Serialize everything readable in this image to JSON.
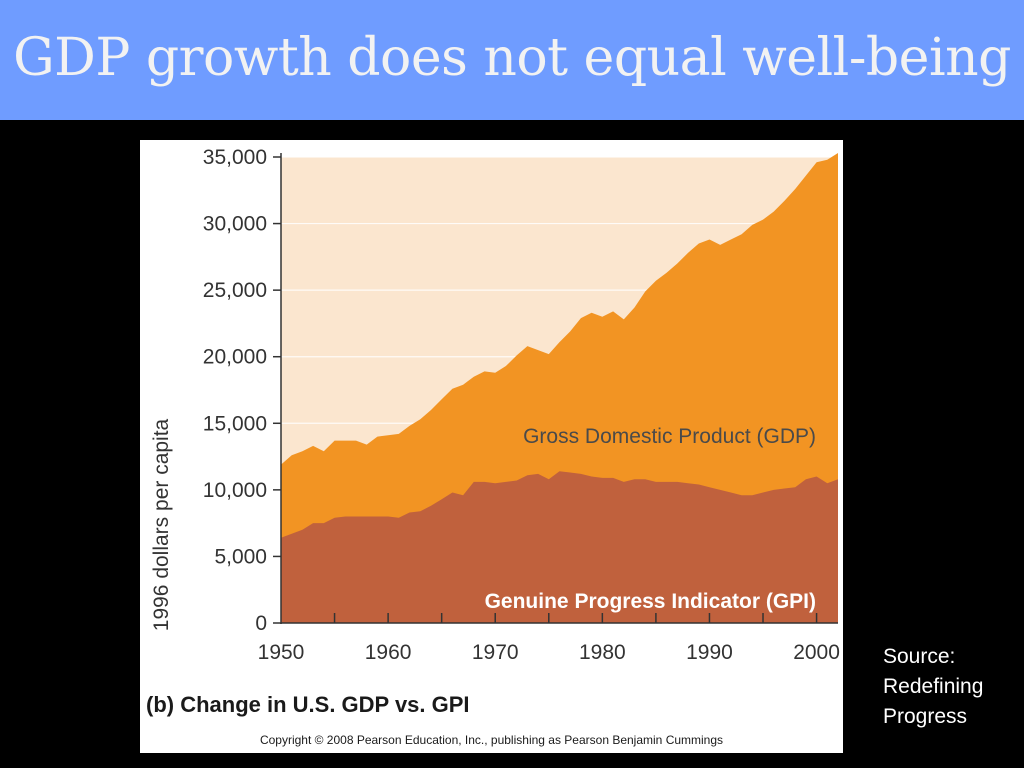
{
  "slide": {
    "title": "GDP growth does not equal well-being",
    "source_lines": [
      "Source:",
      "Redefining",
      "Progress"
    ]
  },
  "figure": {
    "caption": "(b) Change in U.S. GDP vs. GPI",
    "copyright": "Copyright © 2008 Pearson Education, Inc., publishing as Pearson Benjamin Cummings"
  },
  "colors": {
    "title_bar": "#6f9cff",
    "plot_background": "#fbe6cf",
    "gdp_fill": "#f29423",
    "gpi_fill": "#c0613d",
    "gpi_label": "#ffffff",
    "gdp_label": "#4a4a4a"
  },
  "chart_data": {
    "type": "area",
    "title": "",
    "xlabel": "",
    "ylabel": "1996 dollars per capita",
    "xlim": [
      1950,
      2002
    ],
    "ylim": [
      0,
      35000
    ],
    "grid": true,
    "x_ticks": [
      1950,
      1960,
      1970,
      1980,
      1990,
      2000
    ],
    "x_tick_labels": [
      "1950",
      "1960",
      "1970",
      "1980",
      "1990",
      "2000"
    ],
    "y_ticks": [
      0,
      5000,
      10000,
      15000,
      20000,
      25000,
      30000,
      35000
    ],
    "y_tick_labels": [
      "0",
      "5,000",
      "10,000",
      "15,000",
      "20,000",
      "25,000",
      "30,000",
      "35,000"
    ],
    "x": [
      1950,
      1951,
      1952,
      1953,
      1954,
      1955,
      1956,
      1957,
      1958,
      1959,
      1960,
      1961,
      1962,
      1963,
      1964,
      1965,
      1966,
      1967,
      1968,
      1969,
      1970,
      1971,
      1972,
      1973,
      1974,
      1975,
      1976,
      1977,
      1978,
      1979,
      1980,
      1981,
      1982,
      1983,
      1984,
      1985,
      1986,
      1987,
      1988,
      1989,
      1990,
      1991,
      1992,
      1993,
      1994,
      1995,
      1996,
      1997,
      1998,
      1999,
      2000,
      2001,
      2002
    ],
    "series": [
      {
        "name": "Gross Domestic Product (GDP)",
        "values": [
          11900,
          12600,
          12900,
          13300,
          12900,
          13700,
          13700,
          13700,
          13400,
          14000,
          14100,
          14200,
          14800,
          15300,
          16000,
          16800,
          17600,
          17900,
          18500,
          18900,
          18800,
          19300,
          20100,
          20800,
          20500,
          20200,
          21100,
          21900,
          22900,
          23300,
          23000,
          23400,
          22800,
          23700,
          24900,
          25700,
          26300,
          27000,
          27800,
          28500,
          28800,
          28400,
          28800,
          29200,
          29900,
          30300,
          30900,
          31700,
          32600,
          33600,
          34600,
          34800,
          35300
        ]
      },
      {
        "name": "Genuine Progress Indicator (GPI)",
        "values": [
          6400,
          6700,
          7000,
          7500,
          7500,
          7900,
          8000,
          8000,
          8000,
          8000,
          8000,
          7900,
          8300,
          8400,
          8800,
          9300,
          9800,
          9600,
          10600,
          10600,
          10500,
          10600,
          10700,
          11100,
          11200,
          10800,
          11400,
          11300,
          11200,
          11000,
          10900,
          10900,
          10600,
          10800,
          10800,
          10600,
          10600,
          10600,
          10500,
          10400,
          10200,
          10000,
          9800,
          9600,
          9600,
          9800,
          10000,
          10100,
          10200,
          10800,
          11000,
          10500,
          10800
        ]
      }
    ]
  }
}
